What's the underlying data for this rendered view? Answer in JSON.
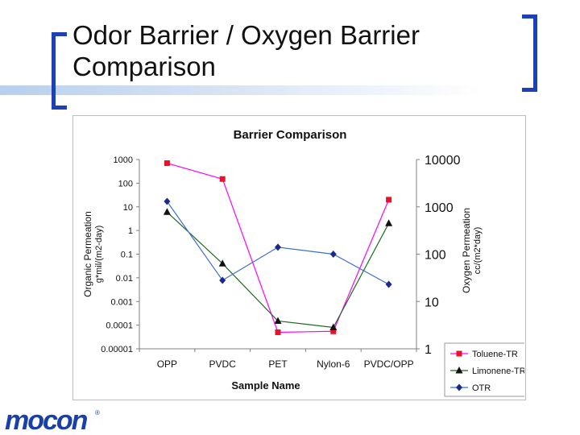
{
  "slide": {
    "title_line1": "Odor Barrier / Oxygen Barrier",
    "title_line2": "Comparison",
    "logo_text": "mocon",
    "logo_mark": "®",
    "logo_color": "#1a3fa8",
    "bracket_color": "#1f3fb5"
  },
  "chart_data": {
    "type": "line",
    "title": "Barrier Comparison",
    "xlabel": "Sample Name",
    "ylabel_left": [
      "Organic Permeation",
      "g*mil/(m2-day)"
    ],
    "ylabel_right": [
      "Oxygen Permeation",
      "cc/(m2*day)"
    ],
    "categories": [
      "OPP",
      "PVDC",
      "PET",
      "Nylon-6",
      "PVDC/OPP"
    ],
    "y_left": {
      "scale": "log",
      "ylim": [
        1e-05,
        1000
      ],
      "ticks": [
        "1000",
        "100",
        "10",
        "1",
        "0.1",
        "0.01",
        "0.001",
        "0.0001",
        "0.00001"
      ]
    },
    "y_right": {
      "scale": "log",
      "ylim": [
        1,
        10000
      ],
      "ticks": [
        "10000",
        "1000",
        "100",
        "10",
        "1"
      ]
    },
    "grid": false,
    "legend_position": "bottom-right",
    "series": [
      {
        "name": "Toluene-TR",
        "axis": "left",
        "color": "#ff00ff",
        "marker_color": "#e8102a",
        "marker": "square",
        "values": [
          700,
          150,
          5e-05,
          5.5e-05,
          20
        ]
      },
      {
        "name": "Limonene-TR",
        "axis": "left",
        "color": "#1e6b1e",
        "marker_color": "#111111",
        "marker": "triangle",
        "values": [
          6,
          0.04,
          0.00015,
          8e-05,
          2
        ]
      },
      {
        "name": "OTR",
        "axis": "right",
        "color": "#3b6fd0",
        "marker_color": "#1a2a8c",
        "marker": "diamond",
        "values": [
          1300,
          28,
          140,
          100,
          23
        ]
      }
    ]
  }
}
